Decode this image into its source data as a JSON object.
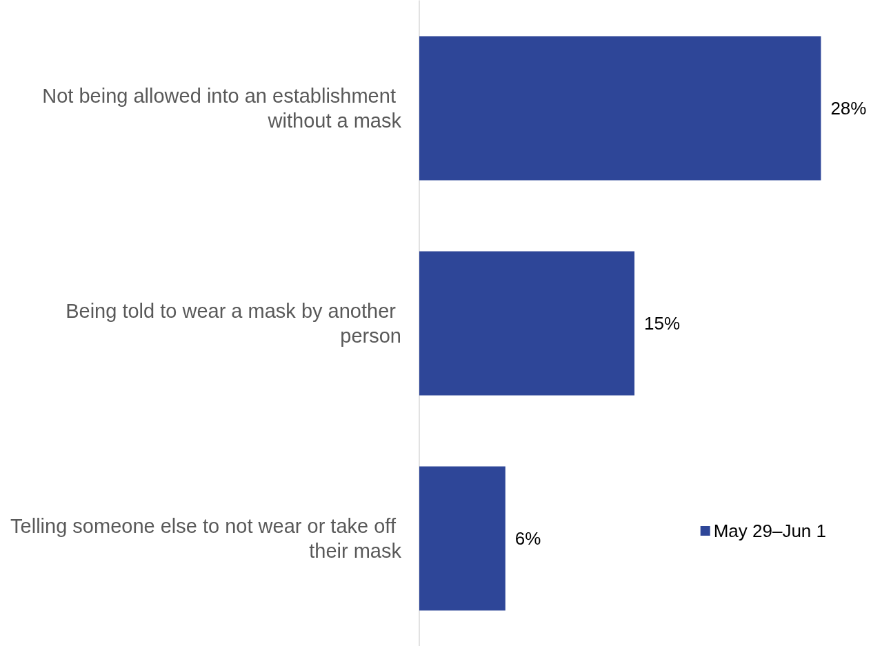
{
  "chart_data": {
    "type": "bar",
    "orientation": "horizontal",
    "categories": [
      "Not being allowed into an establishment without a mask",
      "Being told to wear a mask by another person",
      "Telling someone else to not wear or take off their mask"
    ],
    "series": [
      {
        "name": "May 29–Jun 1",
        "color": "#2e4698",
        "values": [
          28,
          15,
          6
        ],
        "value_labels": [
          "28%",
          "15%",
          "6%"
        ]
      }
    ],
    "legend": "right"
  }
}
